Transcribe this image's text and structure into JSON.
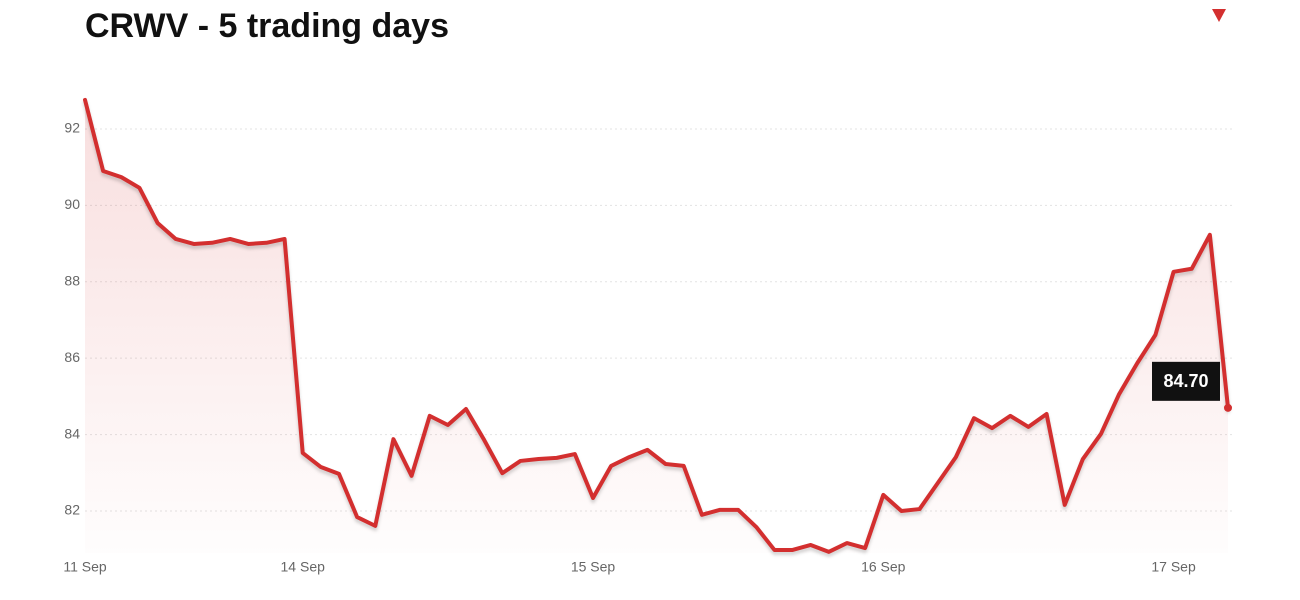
{
  "chart_data": {
    "type": "line",
    "title": "CRWV - 5 trading days",
    "categories": [
      "11 Sep",
      null,
      null,
      null,
      null,
      null,
      null,
      null,
      null,
      null,
      null,
      null,
      "14 Sep",
      null,
      null,
      null,
      null,
      null,
      null,
      null,
      null,
      null,
      null,
      null,
      null,
      null,
      null,
      null,
      "15 Sep",
      null,
      null,
      null,
      null,
      null,
      null,
      null,
      null,
      null,
      null,
      null,
      null,
      null,
      null,
      null,
      "16 Sep",
      null,
      null,
      null,
      null,
      null,
      null,
      null,
      null,
      null,
      null,
      null,
      null,
      null,
      null,
      null,
      "17 Sep",
      null,
      null,
      null
    ],
    "values": [
      92.76,
      90.9,
      90.74,
      90.46,
      89.54,
      89.12,
      88.99,
      89.02,
      89.12,
      88.99,
      89.02,
      89.12,
      83.52,
      83.15,
      82.97,
      81.84,
      81.61,
      83.88,
      82.92,
      84.49,
      84.25,
      84.67,
      83.86,
      82.99,
      83.31,
      83.36,
      83.39,
      83.49,
      82.34,
      83.18,
      83.41,
      83.6,
      83.23,
      83.18,
      81.9,
      82.03,
      82.03,
      81.58,
      80.98,
      80.98,
      81.11,
      80.93,
      81.16,
      81.03,
      82.42,
      82.0,
      82.05,
      82.73,
      83.41,
      84.43,
      84.17,
      84.49,
      84.2,
      84.54,
      82.16,
      83.36,
      84.02,
      85.06,
      85.87,
      86.61,
      88.26,
      88.34,
      89.23,
      84.7
    ],
    "value_labels": [
      null,
      null,
      null,
      null,
      null,
      null,
      null,
      null,
      null,
      null,
      null,
      null,
      null,
      null,
      null,
      null,
      null,
      null,
      null,
      null,
      null,
      null,
      null,
      null,
      null,
      null,
      null,
      null,
      null,
      null,
      null,
      null,
      null,
      null,
      null,
      null,
      null,
      null,
      null,
      null,
      null,
      null,
      null,
      null,
      null,
      null,
      null,
      null,
      null,
      null,
      null,
      null,
      null,
      null,
      null,
      null,
      null,
      null,
      null,
      null,
      null,
      null,
      null,
      "84.70"
    ],
    "color": "#d32f2f",
    "ylim": [
      80.9,
      92.8
    ],
    "yticks": [
      82,
      84,
      86,
      88,
      90,
      92
    ],
    "grid": true
  }
}
